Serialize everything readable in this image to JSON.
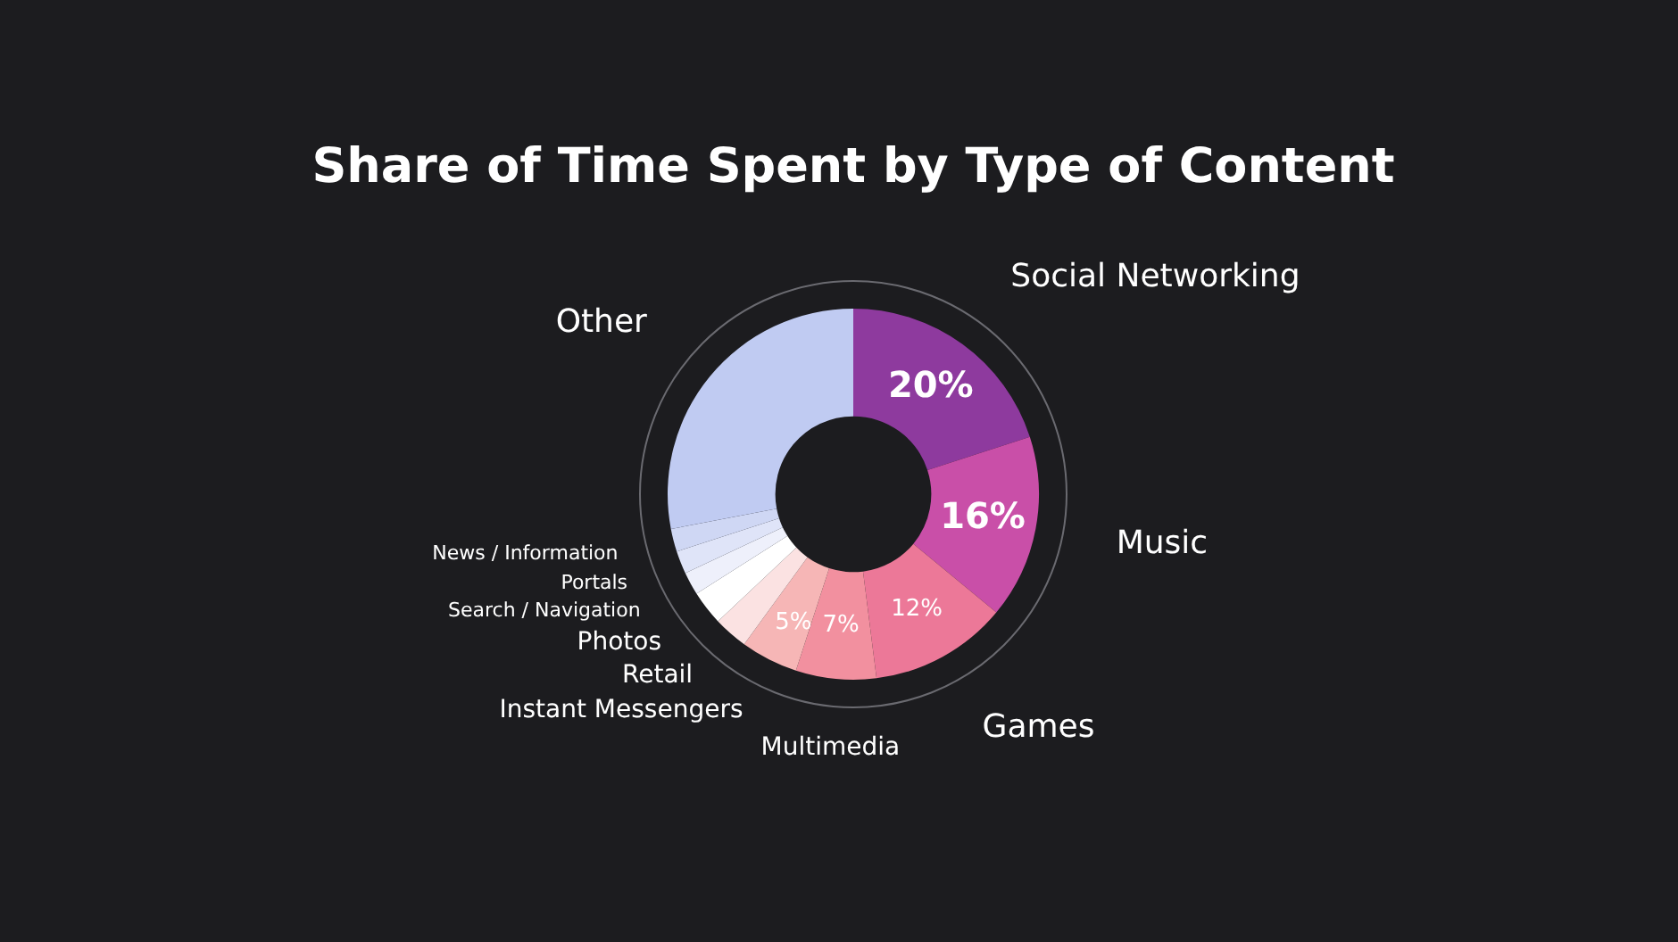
{
  "chart_data": {
    "type": "donut",
    "title": "Share of Time Spent by Type of Content",
    "categories": [
      "Social Networking",
      "Music",
      "Games",
      "Multimedia",
      "Instant Messengers",
      "Retail",
      "Photos",
      "Search / Navigation",
      "Portals",
      "News / Information",
      "Other"
    ],
    "values": [
      20,
      16,
      12,
      7,
      5,
      3,
      3,
      2,
      2,
      2,
      28
    ],
    "value_labels": [
      "20%",
      "16%",
      "12%",
      "7%",
      "5%",
      null,
      null,
      null,
      null,
      null,
      null
    ],
    "colors": [
      "#8e3a9e",
      "#c94fa8",
      "#ec7898",
      "#f2909f",
      "#f6b6b6",
      "#fbe2e2",
      "#ffffff",
      "#eef0fb",
      "#dfe4f8",
      "#cfd7f4",
      "#c0cbf2"
    ],
    "legend": false
  }
}
